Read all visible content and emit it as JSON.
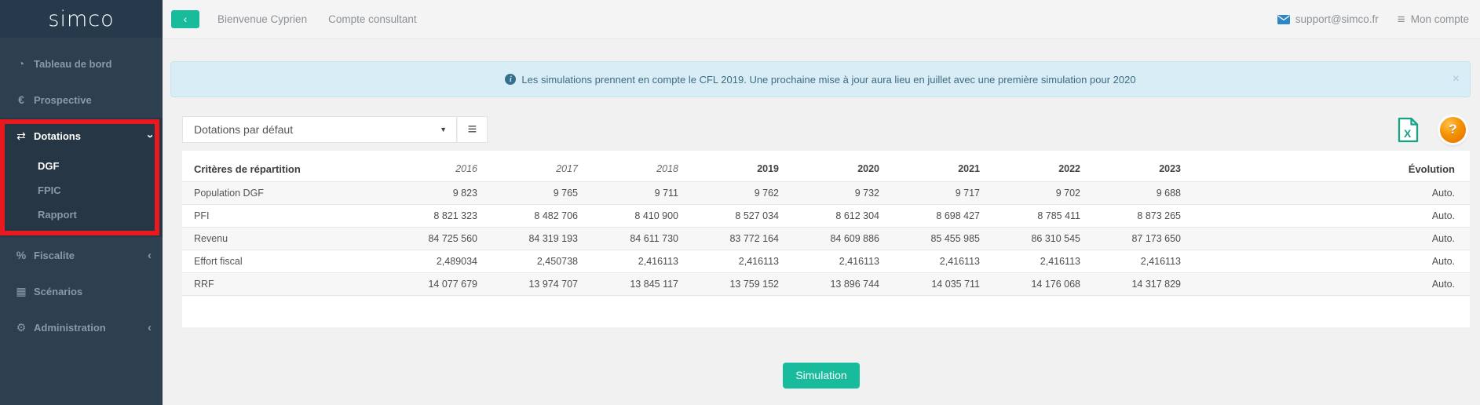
{
  "brand": {
    "logo": "simco"
  },
  "sidebar": {
    "items": [
      {
        "label": "Tableau de bord",
        "icon": "gauge"
      },
      {
        "label": "Prospective",
        "icon": "euro"
      },
      {
        "label": "Dotations",
        "icon": "exchange",
        "chevron": "down",
        "active": true,
        "children": [
          {
            "label": "DGF",
            "active": true
          },
          {
            "label": "FPIC"
          },
          {
            "label": "Rapport"
          }
        ]
      },
      {
        "label": "Fiscalite",
        "icon": "percent",
        "chevron": "left"
      },
      {
        "label": "Scénarios",
        "icon": "grid"
      },
      {
        "label": "Administration",
        "icon": "gear",
        "chevron": "left"
      }
    ]
  },
  "topbar": {
    "welcome": "Bienvenue Cyprien",
    "account_type": "Compte consultant",
    "support_email": "support@simco.fr",
    "my_account": "Mon compte"
  },
  "banner": {
    "text": "Les simulations prennent en compte le CFL 2019. Une prochaine mise à jour aura lieu en juillet avec une première simulation pour 2020"
  },
  "toolbar": {
    "dropdown_value": "Dotations par défaut"
  },
  "table": {
    "first_header": "Critères de répartition",
    "year_headers": [
      {
        "label": "2016",
        "italic": true
      },
      {
        "label": "2017",
        "italic": true
      },
      {
        "label": "2018",
        "italic": true
      },
      {
        "label": "2019",
        "italic": false
      },
      {
        "label": "2020",
        "italic": false
      },
      {
        "label": "2021",
        "italic": false
      },
      {
        "label": "2022",
        "italic": false
      },
      {
        "label": "2023",
        "italic": false
      }
    ],
    "evolution_header": "Évolution",
    "rows": [
      {
        "label": "Population DGF",
        "values": [
          "9 823",
          "9 765",
          "9 711",
          "9 762",
          "9 732",
          "9 717",
          "9 702",
          "9 688"
        ],
        "evolution": "Auto."
      },
      {
        "label": "PFI",
        "values": [
          "8 821 323",
          "8 482 706",
          "8 410 900",
          "8 527 034",
          "8 612 304",
          "8 698 427",
          "8 785 411",
          "8 873 265"
        ],
        "evolution": "Auto."
      },
      {
        "label": "Revenu",
        "values": [
          "84 725 560",
          "84 319 193",
          "84 611 730",
          "83 772 164",
          "84 609 886",
          "85 455 985",
          "86 310 545",
          "87 173 650"
        ],
        "evolution": "Auto."
      },
      {
        "label": "Effort fiscal",
        "values": [
          "2,489034",
          "2,450738",
          "2,416113",
          "2,416113",
          "2,416113",
          "2,416113",
          "2,416113",
          "2,416113"
        ],
        "evolution": "Auto."
      },
      {
        "label": "RRF",
        "values": [
          "14 077 679",
          "13 974 707",
          "13 845 117",
          "13 759 152",
          "13 896 744",
          "14 035 711",
          "14 176 068",
          "14 317 829"
        ],
        "evolution": "Auto."
      }
    ]
  },
  "actions": {
    "simulation_label": "Simulation"
  },
  "colors": {
    "sidebar_bg": "#2e3f50",
    "sidebar_logo_bg": "#273a4c",
    "sidebar_text": "#8b99a7",
    "teal": "#18bc9c",
    "content_bg": "#f1f1f2",
    "panel_bg": "#ffffff",
    "banner_bg": "#d9edf7",
    "banner_border": "#c6e3f0",
    "banner_text": "#3e6b80",
    "blue": "#2e86c5",
    "red_annotation": "#e8191f",
    "excel_green": "#18a384",
    "help_orange": "#f49200",
    "text_muted": "#8b9196",
    "table_text": "#4d4d4d",
    "row_stripe": "#f7f7f7",
    "row_border": "#e7e7e7"
  }
}
